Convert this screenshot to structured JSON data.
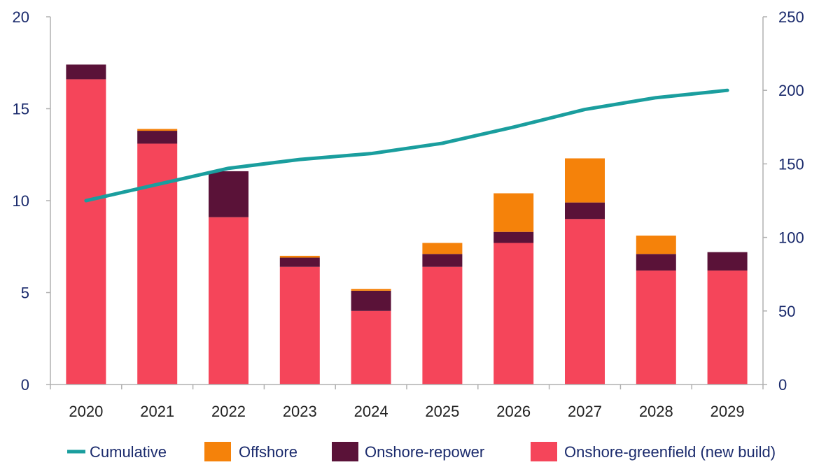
{
  "chart_data": {
    "type": "bar",
    "stacked": true,
    "categories": [
      "2020",
      "2021",
      "2022",
      "2023",
      "2024",
      "2025",
      "2026",
      "2027",
      "2028",
      "2029"
    ],
    "series": [
      {
        "name": "Onshore-greenfield (new build)",
        "axis": "left",
        "color": "#f5455a",
        "values": [
          16.6,
          13.1,
          9.1,
          6.4,
          4.0,
          6.4,
          7.7,
          9.0,
          6.2,
          6.2
        ]
      },
      {
        "name": "Onshore-repower",
        "axis": "left",
        "color": "#5a1238",
        "values": [
          0.8,
          0.7,
          2.5,
          0.5,
          1.1,
          0.7,
          0.6,
          0.9,
          0.9,
          1.0
        ]
      },
      {
        "name": "Offshore",
        "axis": "left",
        "color": "#f5820a",
        "values": [
          0.0,
          0.1,
          0.0,
          0.1,
          0.1,
          0.6,
          2.1,
          2.4,
          1.0,
          0.0
        ]
      },
      {
        "name": "Cumulative",
        "type": "line",
        "axis": "right",
        "color": "#1a9e9e",
        "values": [
          125,
          136,
          147,
          153,
          157,
          164,
          175,
          187,
          195,
          200
        ]
      }
    ],
    "left_axis": {
      "ylim": [
        0,
        20
      ],
      "ticks": [
        0,
        5,
        10,
        15,
        20
      ]
    },
    "right_axis": {
      "ylim": [
        0,
        250
      ],
      "ticks": [
        0,
        50,
        100,
        150,
        200,
        250
      ]
    },
    "legend": {
      "position": "bottom",
      "items": [
        {
          "label": "Cumulative",
          "kind": "line",
          "color": "#1a9e9e"
        },
        {
          "label": "Offshore",
          "kind": "box",
          "color": "#f5820a"
        },
        {
          "label": "Onshore-repower",
          "kind": "box",
          "color": "#5a1238"
        },
        {
          "label": "Onshore-greenfield (new build)",
          "kind": "box",
          "color": "#f5455a"
        }
      ]
    },
    "grid": false
  }
}
